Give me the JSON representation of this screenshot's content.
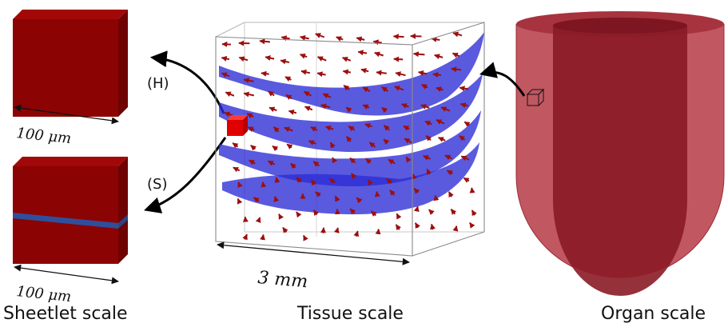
{
  "labels": {
    "homogeneous": "(H)",
    "sheetlet": "(S)",
    "cube_size_top": "100 μm",
    "cube_size_bottom": "100 μm",
    "tissue_size": "3 mm"
  },
  "captions": {
    "sheetlet_scale": "Sheetlet scale",
    "tissue_scale": "Tissue scale",
    "organ_scale": "Organ scale"
  },
  "colors": {
    "cube_front": "#8c0303",
    "cube_side": "#6f0202",
    "cube_top": "#a30808",
    "sheet_band": "#2f4f9a",
    "sheet_blue": "#2b2bd6",
    "fiber_arrow": "#9b0f0f",
    "organ": "#b53a45",
    "small_cube": "#e00000"
  }
}
